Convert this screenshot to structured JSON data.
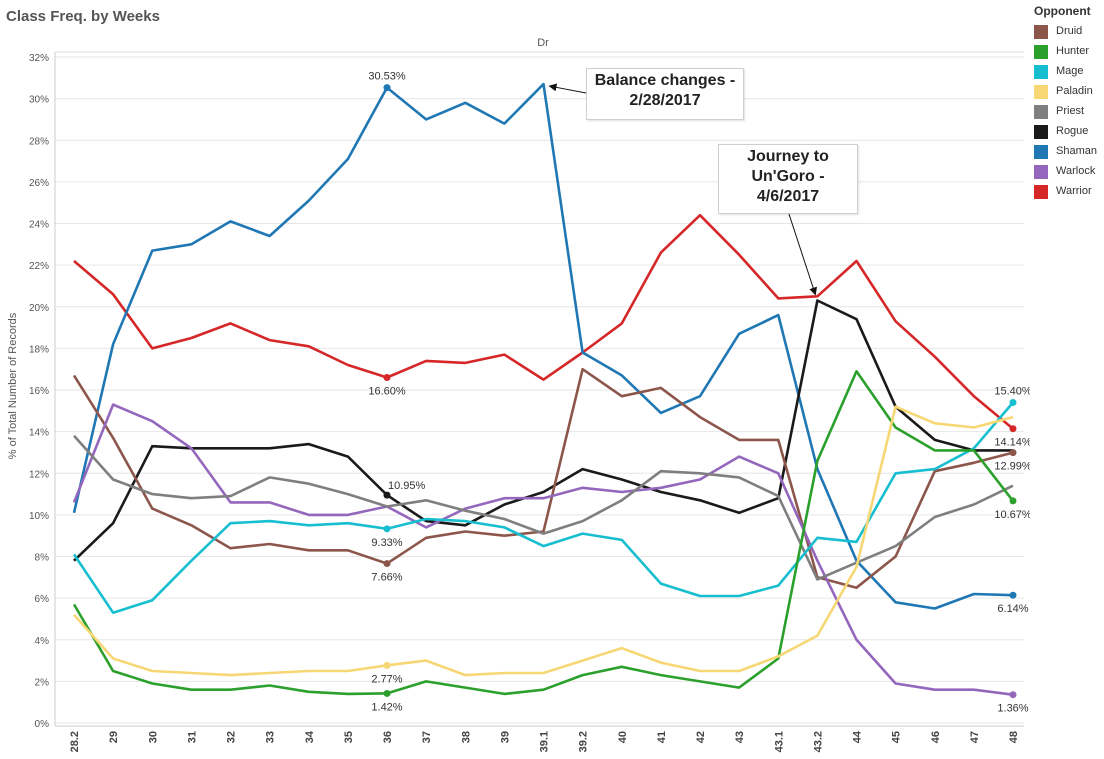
{
  "title": "Class Freq. by Weeks",
  "legend": {
    "title": "Opponent",
    "items": [
      {
        "label": "Druid",
        "color": "#8c564b"
      },
      {
        "label": "Hunter",
        "color": "#2ca02c"
      },
      {
        "label": "Mage",
        "color": "#17becf"
      },
      {
        "label": "Paladin",
        "color": "#f7d774"
      },
      {
        "label": "Priest",
        "color": "#7f7f7f"
      },
      {
        "label": "Rogue",
        "color": "#1a1a1a"
      },
      {
        "label": "Shaman",
        "color": "#1f77b4"
      },
      {
        "label": "Warlock",
        "color": "#9467bd"
      },
      {
        "label": "Warrior",
        "color": "#d62728"
      }
    ]
  },
  "annotations": {
    "balance": "Balance changes -\n2/28/2017",
    "ungoro": "Journey to\nUn'Goro -\n4/6/2017"
  },
  "chart_data": {
    "type": "line",
    "title": "Class Freq. by Weeks",
    "panel_header": "Dr",
    "xlabel": "",
    "ylabel": "% of Total Number of Records",
    "ylim": [
      0,
      32
    ],
    "yticks": [
      "0%",
      "2%",
      "4%",
      "6%",
      "8%",
      "10%",
      "12%",
      "14%",
      "16%",
      "18%",
      "20%",
      "22%",
      "24%",
      "26%",
      "28%",
      "30%",
      "32%"
    ],
    "grid": true,
    "legend_position": "right",
    "categories": [
      "28.2",
      "29",
      "30",
      "31",
      "32",
      "33",
      "34",
      "35",
      "36",
      "37",
      "38",
      "39",
      "39.1",
      "39.2",
      "40",
      "41",
      "42",
      "43",
      "43.1",
      "43.2",
      "44",
      "45",
      "46",
      "47",
      "48"
    ],
    "series": [
      {
        "name": "Warrior",
        "color": "#d62728",
        "values": [
          22.2,
          20.6,
          18.0,
          18.5,
          19.2,
          18.4,
          18.1,
          17.2,
          16.6,
          17.4,
          17.3,
          17.7,
          16.5,
          17.8,
          19.2,
          22.6,
          24.4,
          22.5,
          20.4,
          20.5,
          22.2,
          19.3,
          17.6,
          15.7,
          14.14
        ]
      },
      {
        "name": "Shaman",
        "color": "#1f77b4",
        "values": [
          10.1,
          18.2,
          22.7,
          23.0,
          24.1,
          23.4,
          25.1,
          27.1,
          30.53,
          29.0,
          29.8,
          28.8,
          30.7,
          17.8,
          16.7,
          14.9,
          15.7,
          18.7,
          19.6,
          12.2,
          7.8,
          5.8,
          5.5,
          6.2,
          6.14
        ]
      },
      {
        "name": "Rogue",
        "color": "#1a1a1a",
        "values": [
          7.8,
          9.6,
          13.3,
          13.2,
          13.2,
          13.2,
          13.4,
          12.8,
          10.95,
          9.7,
          9.5,
          10.5,
          11.1,
          12.2,
          11.7,
          11.1,
          10.7,
          10.1,
          10.8,
          20.3,
          19.4,
          15.2,
          13.6,
          13.1,
          13.1
        ]
      },
      {
        "name": "Druid",
        "color": "#8c564b",
        "values": [
          16.7,
          13.7,
          10.3,
          9.5,
          8.4,
          8.6,
          8.3,
          8.3,
          7.66,
          8.9,
          9.2,
          9.0,
          9.2,
          17.0,
          15.7,
          16.1,
          14.7,
          13.6,
          13.6,
          7.0,
          6.5,
          8.0,
          12.1,
          12.5,
          12.99
        ]
      },
      {
        "name": "Warlock",
        "color": "#9467bd",
        "values": [
          10.6,
          15.3,
          14.5,
          13.2,
          10.6,
          10.6,
          10.0,
          10.0,
          10.4,
          9.4,
          10.3,
          10.8,
          10.8,
          11.3,
          11.1,
          11.3,
          11.7,
          12.8,
          12.0,
          7.8,
          4.0,
          1.9,
          1.6,
          1.6,
          1.36
        ]
      },
      {
        "name": "Priest",
        "color": "#7f7f7f",
        "values": [
          13.8,
          11.7,
          11.0,
          10.8,
          10.9,
          11.8,
          11.5,
          11.0,
          10.4,
          10.7,
          10.2,
          9.8,
          9.1,
          9.7,
          10.7,
          12.1,
          12.0,
          11.8,
          10.9,
          6.9,
          7.7,
          8.5,
          9.9,
          10.5,
          11.4
        ]
      },
      {
        "name": "Mage",
        "color": "#17becf",
        "values": [
          8.1,
          5.3,
          5.9,
          7.8,
          9.6,
          9.7,
          9.5,
          9.6,
          9.33,
          9.8,
          9.7,
          9.4,
          8.5,
          9.1,
          8.8,
          6.7,
          6.1,
          6.1,
          6.6,
          8.9,
          8.7,
          12.0,
          12.2,
          13.2,
          15.4
        ]
      },
      {
        "name": "Hunter",
        "color": "#2ca02c",
        "values": [
          5.7,
          2.5,
          1.9,
          1.6,
          1.6,
          1.8,
          1.5,
          1.4,
          1.42,
          2.0,
          1.7,
          1.4,
          1.6,
          2.3,
          2.7,
          2.3,
          2.0,
          1.7,
          3.1,
          12.6,
          16.9,
          14.2,
          13.1,
          13.1,
          10.67
        ]
      },
      {
        "name": "Paladin",
        "color": "#f7d774",
        "values": [
          5.2,
          3.1,
          2.5,
          2.4,
          2.3,
          2.4,
          2.5,
          2.5,
          2.77,
          3.0,
          2.3,
          2.4,
          2.4,
          3.0,
          3.6,
          2.9,
          2.5,
          2.5,
          3.2,
          4.2,
          7.5,
          15.2,
          14.4,
          14.2,
          14.7
        ]
      }
    ],
    "data_labels": [
      {
        "series": "Shaman",
        "category": "36",
        "text": "30.53%",
        "pos": "above"
      },
      {
        "series": "Warrior",
        "category": "36",
        "text": "16.60%",
        "pos": "below"
      },
      {
        "series": "Rogue",
        "category": "36",
        "text": "10.95%",
        "pos": "right"
      },
      {
        "series": "Mage",
        "category": "36",
        "text": "9.33%",
        "pos": "below"
      },
      {
        "series": "Druid",
        "category": "36",
        "text": "7.66%",
        "pos": "below"
      },
      {
        "series": "Paladin",
        "category": "36",
        "text": "2.77%",
        "pos": "below"
      },
      {
        "series": "Hunter",
        "category": "36",
        "text": "1.42%",
        "pos": "below"
      },
      {
        "series": "Mage",
        "category": "48",
        "text": "15.40%",
        "pos": "above"
      },
      {
        "series": "Warrior",
        "category": "48",
        "text": "14.14%",
        "pos": "below"
      },
      {
        "series": "Druid",
        "category": "48",
        "text": "12.99%",
        "pos": "below"
      },
      {
        "series": "Hunter",
        "category": "48",
        "text": "10.67%",
        "pos": "below"
      },
      {
        "series": "Shaman",
        "category": "48",
        "text": "6.14%",
        "pos": "below"
      },
      {
        "series": "Warlock",
        "category": "48",
        "text": "1.36%",
        "pos": "below"
      }
    ]
  }
}
